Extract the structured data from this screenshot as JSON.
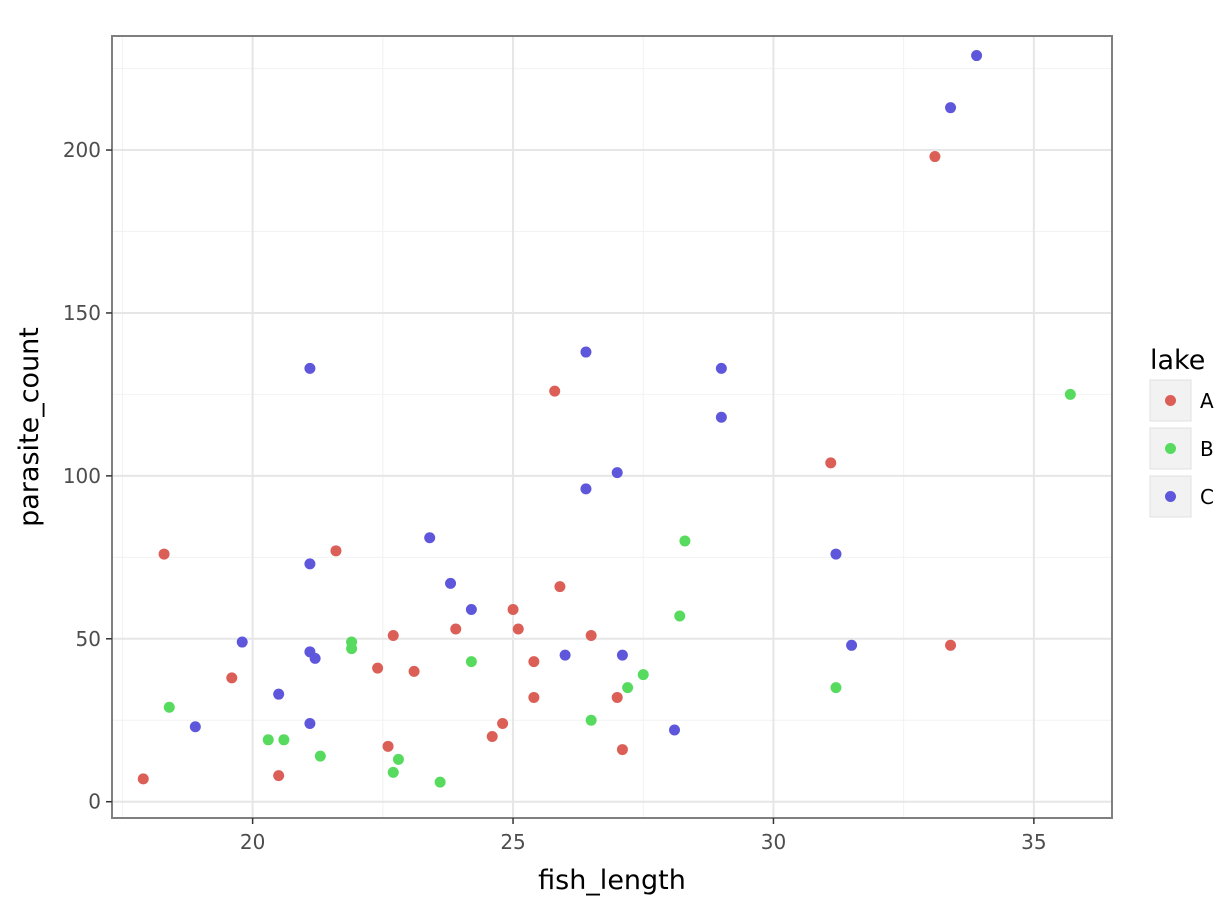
{
  "chart_data": {
    "type": "scatter",
    "xlabel": "fish_length",
    "ylabel": "parasite_count",
    "xlim": [
      17.3,
      36.5
    ],
    "ylim": [
      -5,
      235
    ],
    "x_ticks": [
      20,
      25,
      30,
      35
    ],
    "x_tick_labels": [
      "20",
      "25",
      "30",
      "35"
    ],
    "y_ticks": [
      0,
      50,
      100,
      150,
      200
    ],
    "y_tick_labels": [
      "0",
      "50",
      "100",
      "150",
      "200"
    ],
    "x_minor_ticks": [
      17.5,
      22.5,
      27.5,
      32.5
    ],
    "y_minor_ticks": [
      25,
      75,
      125,
      175,
      225
    ],
    "grid": true,
    "legend": {
      "title": "lake",
      "position": "right"
    },
    "series": [
      {
        "name": "A",
        "color": "#db5f57",
        "points": [
          {
            "x": 17.9,
            "y": 7
          },
          {
            "x": 18.3,
            "y": 76
          },
          {
            "x": 19.6,
            "y": 38
          },
          {
            "x": 20.5,
            "y": 8
          },
          {
            "x": 21.6,
            "y": 77
          },
          {
            "x": 22.4,
            "y": 41
          },
          {
            "x": 22.6,
            "y": 17
          },
          {
            "x": 22.7,
            "y": 51
          },
          {
            "x": 23.1,
            "y": 40
          },
          {
            "x": 23.9,
            "y": 53
          },
          {
            "x": 24.6,
            "y": 20
          },
          {
            "x": 24.8,
            "y": 24
          },
          {
            "x": 25.0,
            "y": 59
          },
          {
            "x": 25.1,
            "y": 53
          },
          {
            "x": 25.4,
            "y": 43
          },
          {
            "x": 25.4,
            "y": 32
          },
          {
            "x": 25.8,
            "y": 126
          },
          {
            "x": 25.9,
            "y": 66
          },
          {
            "x": 26.5,
            "y": 51
          },
          {
            "x": 27.0,
            "y": 32
          },
          {
            "x": 27.1,
            "y": 16
          },
          {
            "x": 31.1,
            "y": 104
          },
          {
            "x": 33.1,
            "y": 198
          },
          {
            "x": 33.4,
            "y": 48
          }
        ]
      },
      {
        "name": "B",
        "color": "#57db5f",
        "points": [
          {
            "x": 18.4,
            "y": 29
          },
          {
            "x": 20.3,
            "y": 19
          },
          {
            "x": 20.6,
            "y": 19
          },
          {
            "x": 21.3,
            "y": 14
          },
          {
            "x": 21.9,
            "y": 49
          },
          {
            "x": 21.9,
            "y": 47
          },
          {
            "x": 22.7,
            "y": 9
          },
          {
            "x": 22.8,
            "y": 13
          },
          {
            "x": 23.6,
            "y": 6
          },
          {
            "x": 24.2,
            "y": 43
          },
          {
            "x": 26.5,
            "y": 25
          },
          {
            "x": 27.2,
            "y": 35
          },
          {
            "x": 27.5,
            "y": 39
          },
          {
            "x": 28.2,
            "y": 57
          },
          {
            "x": 28.3,
            "y": 80
          },
          {
            "x": 31.2,
            "y": 35
          },
          {
            "x": 35.7,
            "y": 125
          }
        ]
      },
      {
        "name": "C",
        "color": "#5f57db",
        "points": [
          {
            "x": 18.9,
            "y": 23
          },
          {
            "x": 19.8,
            "y": 49
          },
          {
            "x": 20.5,
            "y": 33
          },
          {
            "x": 21.1,
            "y": 133
          },
          {
            "x": 21.1,
            "y": 73
          },
          {
            "x": 21.1,
            "y": 46
          },
          {
            "x": 21.2,
            "y": 44
          },
          {
            "x": 21.1,
            "y": 24
          },
          {
            "x": 23.4,
            "y": 81
          },
          {
            "x": 23.8,
            "y": 67
          },
          {
            "x": 24.2,
            "y": 59
          },
          {
            "x": 26.0,
            "y": 45
          },
          {
            "x": 26.4,
            "y": 138
          },
          {
            "x": 26.4,
            "y": 96
          },
          {
            "x": 27.0,
            "y": 101
          },
          {
            "x": 27.1,
            "y": 45
          },
          {
            "x": 28.1,
            "y": 22
          },
          {
            "x": 29.0,
            "y": 133
          },
          {
            "x": 29.0,
            "y": 118
          },
          {
            "x": 31.2,
            "y": 76
          },
          {
            "x": 31.5,
            "y": 48
          },
          {
            "x": 33.4,
            "y": 213
          },
          {
            "x": 33.9,
            "y": 229
          }
        ]
      }
    ]
  }
}
